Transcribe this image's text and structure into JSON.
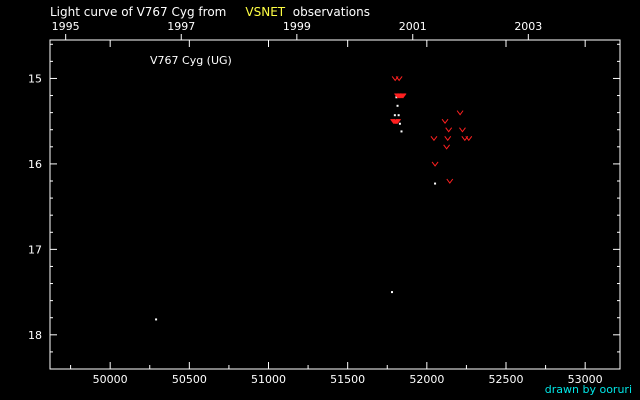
{
  "title": {
    "prefix": "Light curve of V767 Cyg from",
    "source": "VSNET",
    "suffix": "observations"
  },
  "credit": "drawn by ooruri",
  "colors": {
    "background": "#000000",
    "text": "#ffffff",
    "source_label": "#ffff44",
    "credit": "#00e6e6",
    "positive_obs": "#ffffff",
    "fainter_than": "#ff2020"
  },
  "chart_data": {
    "type": "scatter",
    "title": "",
    "annotation": "V767 Cyg (UG)",
    "xlabel": "",
    "ylabel": "",
    "xlim": [
      49620,
      53220
    ],
    "ylim": [
      18.4,
      14.55
    ],
    "y_inverted": true,
    "grid": false,
    "x_ticks": [
      50000,
      50500,
      51000,
      51500,
      52000,
      52500,
      53000
    ],
    "x_tick_labels": [
      "50000",
      "50500",
      "51000",
      "51500",
      "52000",
      "52500",
      "53000"
    ],
    "top_axis_year_ticks": [
      {
        "year": "1995",
        "jd": 49719
      },
      {
        "year": "1997",
        "jd": 50449
      },
      {
        "year": "1999",
        "jd": 51179
      },
      {
        "year": "2001",
        "jd": 51911
      },
      {
        "year": "2003",
        "jd": 52641
      }
    ],
    "y_ticks": [
      15,
      16,
      17,
      18
    ],
    "y_tick_labels": [
      "15",
      "16",
      "17",
      "18"
    ],
    "series": [
      {
        "marker": "dot",
        "x": [
          50290,
          51780,
          51798,
          51808,
          51815,
          51822,
          51830,
          51840,
          52052
        ],
        "y": [
          17.82,
          17.5,
          15.43,
          15.22,
          15.32,
          15.43,
          15.53,
          15.62,
          16.23
        ]
      },
      {
        "marker": "v",
        "x": [
          51800,
          51825,
          51815,
          51820,
          51825,
          51830,
          51835,
          51840,
          51845,
          51850,
          51790,
          51795,
          51800,
          51805,
          51810,
          51815,
          52045,
          52052,
          52115,
          52125,
          52132,
          52138,
          52145,
          52210,
          52225,
          52240,
          52265
        ],
        "y": [
          15.0,
          15.0,
          15.2,
          15.2,
          15.2,
          15.2,
          15.2,
          15.2,
          15.2,
          15.2,
          15.5,
          15.5,
          15.5,
          15.5,
          15.5,
          15.5,
          15.7,
          16.0,
          15.5,
          15.8,
          15.7,
          15.6,
          16.2,
          15.4,
          15.6,
          15.7,
          15.7
        ]
      }
    ]
  }
}
